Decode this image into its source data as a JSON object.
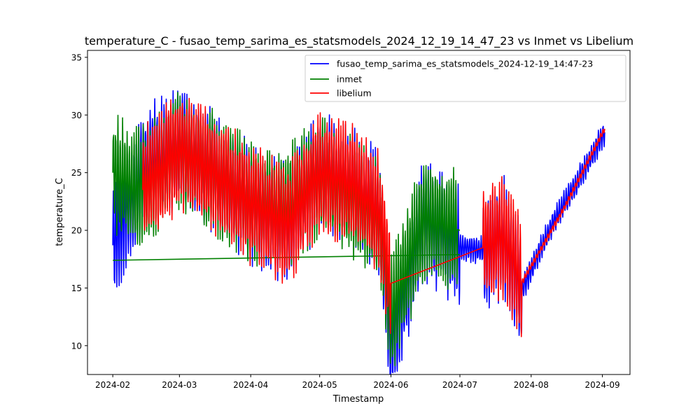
{
  "chart_data": {
    "type": "line",
    "title": "temperature_C - fusao_temp_sarima_es_statsmodels_2024_12_19_14_47_23 vs Inmet vs Libelium",
    "xlabel": "Timestamp",
    "ylabel": "temperature_C",
    "x_ticks": [
      "2024-02",
      "2024-03",
      "2024-04",
      "2024-05",
      "2024-06",
      "2024-07",
      "2024-08",
      "2024-09"
    ],
    "y_ticks": [
      10,
      15,
      20,
      25,
      30,
      35
    ],
    "xlim": [
      "2024-01-21",
      "2024-09-13"
    ],
    "ylim": [
      7.5,
      35.6
    ],
    "legend_position": "top-right",
    "colors": {
      "fusao": "#0000ff",
      "inmet": "#008000",
      "libelium": "#ff0000"
    },
    "series": [
      {
        "name": "fusao_temp_sarima_es_statsmodels_2024-12-19_14:47-23",
        "color": "#0000ff",
        "x": [
          "2024-02-01",
          "2024-02-15",
          "2024-03-01",
          "2024-03-16",
          "2024-04-01",
          "2024-04-17",
          "2024-05-01",
          "2024-05-15",
          "2024-05-27",
          "2024-06-01",
          "2024-06-15",
          "2024-07-01",
          "2024-07-10",
          "2024-07-20",
          "2024-07-28",
          "2024-08-10",
          "2024-08-25",
          "2024-09-02"
        ],
        "y": [
          18.7,
          25.5,
          27.2,
          25.0,
          22.3,
          20.5,
          25.2,
          23.8,
          21.5,
          10.2,
          20.8,
          18.6,
          18.3,
          19.4,
          14.8,
          20.5,
          25.6,
          28.5
        ]
      },
      {
        "name": "inmet",
        "color": "#008000",
        "x": [
          "2024-02-01",
          "2024-02-10",
          "2024-02-20",
          "2024-03-01",
          "2024-03-16",
          "2024-04-01",
          "2024-04-15",
          "2024-05-01",
          "2024-05-15",
          "2024-05-27",
          "2024-06-01",
          "2024-06-15",
          "2024-07-01"
        ],
        "y": [
          25.0,
          23.5,
          24.8,
          27.0,
          25.0,
          22.5,
          21.5,
          24.8,
          23.0,
          21.0,
          12.5,
          21.0,
          20.0
        ]
      },
      {
        "name": "libelium",
        "color": "#ff0000",
        "x": [
          "2024-02-14",
          "2024-03-01",
          "2024-03-16",
          "2024-04-01",
          "2024-04-17",
          "2024-05-01",
          "2024-05-15",
          "2024-05-27",
          "2024-06-01",
          "2024-07-11",
          "2024-07-20",
          "2024-07-28",
          "2024-08-15",
          "2024-09-02"
        ],
        "y": [
          23.5,
          27.0,
          25.0,
          22.3,
          20.5,
          25.0,
          24.0,
          21.5,
          15.4,
          18.5,
          19.5,
          15.5,
          21.8,
          28.8
        ]
      }
    ]
  }
}
